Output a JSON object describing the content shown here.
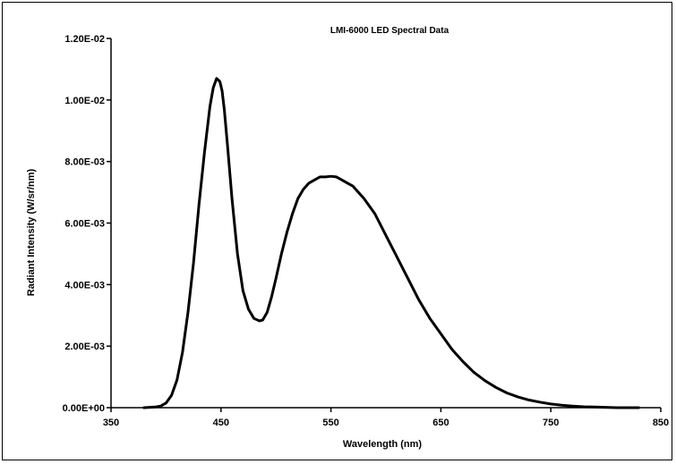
{
  "chart_data": {
    "type": "line",
    "title": "LMI-6000 LED Spectral Data",
    "xlabel": "Wavelength (nm)",
    "ylabel": "Radiant Intensity (W/sr/nm)",
    "xlim": [
      350,
      850
    ],
    "ylim": [
      0,
      0.012
    ],
    "x_ticks": [
      350,
      450,
      550,
      650,
      750,
      850
    ],
    "x_tick_labels": [
      "350",
      "450",
      "550",
      "650",
      "750",
      "850"
    ],
    "y_ticks": [
      0,
      0.002,
      0.004,
      0.006,
      0.008,
      0.01,
      0.012
    ],
    "y_tick_labels": [
      "0.00E+00",
      "2.00E-03",
      "4.00E-03",
      "6.00E-03",
      "8.00E-03",
      "1.00E-02",
      "1.20E-02"
    ],
    "grid": false,
    "legend": "none",
    "line_color": "#000000",
    "series": [
      {
        "x": [
          380,
          390,
          395,
          400,
          405,
          410,
          415,
          420,
          425,
          430,
          435,
          440,
          443,
          446,
          449,
          451,
          453,
          456,
          460,
          465,
          470,
          475,
          480,
          485,
          488,
          492,
          496,
          500,
          505,
          510,
          515,
          520,
          525,
          530,
          535,
          540,
          545,
          550,
          555,
          560,
          565,
          570,
          575,
          580,
          590,
          600,
          610,
          620,
          630,
          640,
          650,
          660,
          670,
          680,
          690,
          700,
          710,
          720,
          730,
          740,
          750,
          760,
          770,
          780,
          790,
          800,
          810,
          820,
          830
        ],
        "y": [
          0.0,
          2e-05,
          5e-05,
          0.00015,
          0.0004,
          0.0009,
          0.0018,
          0.0031,
          0.0047,
          0.0066,
          0.0083,
          0.0098,
          0.0104,
          0.0107,
          0.0106,
          0.0103,
          0.0097,
          0.0085,
          0.0068,
          0.005,
          0.0038,
          0.0032,
          0.0029,
          0.00282,
          0.00285,
          0.0031,
          0.0036,
          0.0042,
          0.005,
          0.0057,
          0.0063,
          0.0068,
          0.0071,
          0.0073,
          0.0074,
          0.0075,
          0.0075,
          0.00752,
          0.0075,
          0.0074,
          0.0073,
          0.0072,
          0.007,
          0.0068,
          0.0063,
          0.0056,
          0.0049,
          0.0042,
          0.0035,
          0.0029,
          0.0024,
          0.0019,
          0.0015,
          0.00115,
          0.00088,
          0.00066,
          0.00048,
          0.00035,
          0.00025,
          0.00018,
          0.00012,
          8e-05,
          5e-05,
          3e-05,
          2e-05,
          1e-05,
          0.0,
          0.0,
          0.0
        ]
      }
    ]
  }
}
